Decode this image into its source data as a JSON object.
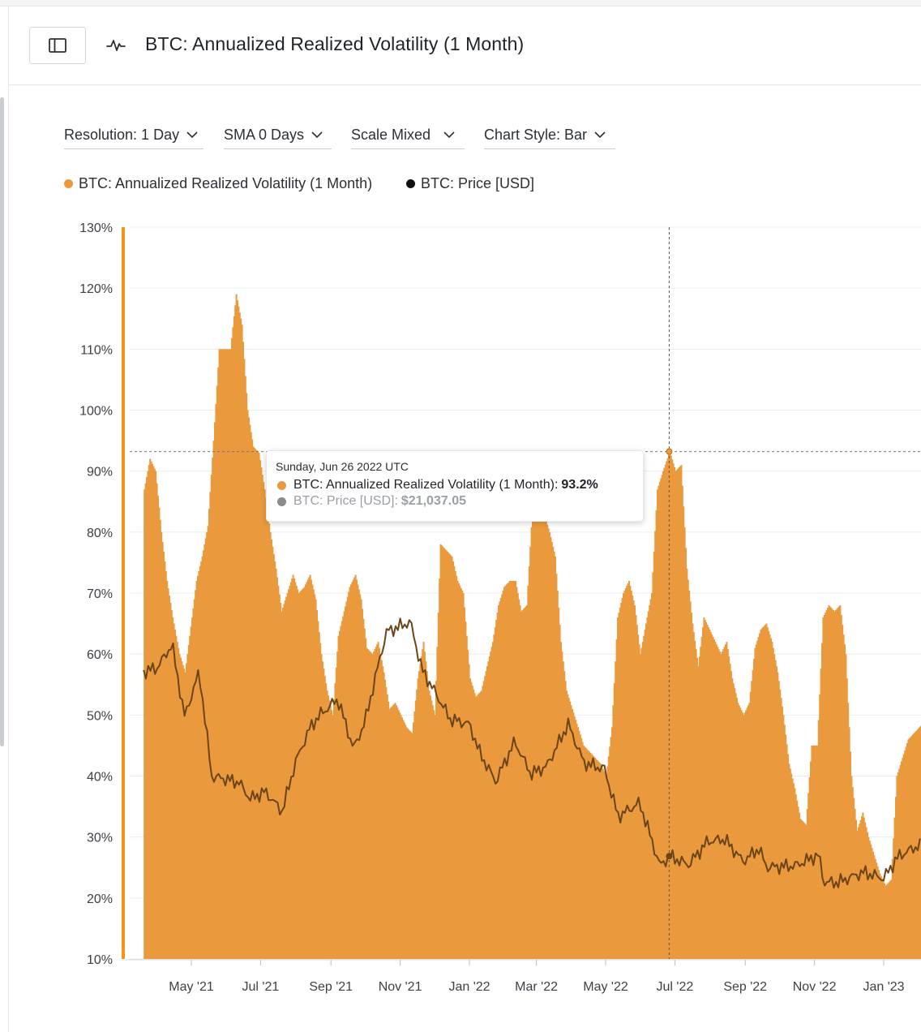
{
  "header": {
    "title": "BTC: Annualized Realized Volatility (1 Month)"
  },
  "controls": {
    "resolution": "Resolution: 1 Day",
    "sma": "SMA 0 Days",
    "scale": "Scale Mixed",
    "chart_style": "Chart Style: Bar"
  },
  "legend": {
    "volatility": "BTC: Annualized Realized Volatility (1 Month)",
    "price": "BTC: Price [USD]"
  },
  "colors": {
    "bar": "#ea9a3d",
    "price_line": "#6b4418",
    "price_line_unselected": "#9a9a9a",
    "accent": "#f7931a",
    "legend_price_dot": "#111111"
  },
  "tooltip": {
    "date": "Sunday, Jun 26 2022 UTC",
    "vol_label": "BTC: Annualized Realized Volatility (1 Month):",
    "vol_value": "93.2%",
    "price_label": "BTC: Price [USD]:",
    "price_value": "$21,037.05"
  },
  "chart_data": {
    "type": "bar",
    "title": "BTC: Annualized Realized Volatility (1 Month)",
    "ylim": [
      10,
      130
    ],
    "y_ticks": [
      "130%",
      "120%",
      "110%",
      "100%",
      "90%",
      "80%",
      "70%",
      "60%",
      "50%",
      "40%",
      "30%",
      "20%",
      "10%"
    ],
    "x_ticks": [
      "May '21",
      "Jul '21",
      "Sep '21",
      "Nov '21",
      "Jan '22",
      "Mar '22",
      "May '22",
      "Jul '22",
      "Sep '22",
      "Nov '22",
      "Jan '23"
    ],
    "x_tick_dates": [
      "2021-05-01",
      "2021-07-01",
      "2021-09-01",
      "2021-11-01",
      "2022-01-01",
      "2022-03-01",
      "2022-05-01",
      "2022-07-01",
      "2022-09-01",
      "2022-11-01",
      "2023-01-01"
    ],
    "x_range": [
      "2021-03-20",
      "2023-02-10"
    ],
    "series": [
      {
        "name": "BTC: Annualized Realized Volatility (1 Month)",
        "unit": "%",
        "points": [
          [
            "2021-03-20",
            87
          ],
          [
            "2021-03-25",
            92
          ],
          [
            "2021-03-30",
            90
          ],
          [
            "2021-04-04",
            80
          ],
          [
            "2021-04-09",
            72
          ],
          [
            "2021-04-14",
            66
          ],
          [
            "2021-04-20",
            60
          ],
          [
            "2021-04-25",
            57
          ],
          [
            "2021-05-01",
            66
          ],
          [
            "2021-05-05",
            72
          ],
          [
            "2021-05-10",
            76
          ],
          [
            "2021-05-15",
            81
          ],
          [
            "2021-05-20",
            95
          ],
          [
            "2021-05-25",
            110
          ],
          [
            "2021-05-30",
            110
          ],
          [
            "2021-06-04",
            110
          ],
          [
            "2021-06-09",
            119
          ],
          [
            "2021-06-14",
            114
          ],
          [
            "2021-06-19",
            100
          ],
          [
            "2021-06-24",
            94
          ],
          [
            "2021-06-29",
            93
          ],
          [
            "2021-07-04",
            87
          ],
          [
            "2021-07-09",
            80
          ],
          [
            "2021-07-14",
            74
          ],
          [
            "2021-07-19",
            67
          ],
          [
            "2021-07-24",
            70
          ],
          [
            "2021-07-29",
            73
          ],
          [
            "2021-08-03",
            70
          ],
          [
            "2021-08-08",
            71
          ],
          [
            "2021-08-13",
            73
          ],
          [
            "2021-08-18",
            69
          ],
          [
            "2021-08-23",
            60
          ],
          [
            "2021-08-28",
            54
          ],
          [
            "2021-09-02",
            50
          ],
          [
            "2021-09-07",
            63
          ],
          [
            "2021-09-12",
            67
          ],
          [
            "2021-09-17",
            71
          ],
          [
            "2021-09-22",
            73
          ],
          [
            "2021-09-27",
            69
          ],
          [
            "2021-10-02",
            61
          ],
          [
            "2021-10-07",
            60
          ],
          [
            "2021-10-12",
            62
          ],
          [
            "2021-10-17",
            57
          ],
          [
            "2021-10-22",
            51
          ],
          [
            "2021-10-27",
            52
          ],
          [
            "2021-11-01",
            50
          ],
          [
            "2021-11-06",
            48
          ],
          [
            "2021-11-11",
            47
          ],
          [
            "2021-11-16",
            56
          ],
          [
            "2021-11-21",
            62
          ],
          [
            "2021-11-26",
            54
          ],
          [
            "2021-12-01",
            50
          ],
          [
            "2021-12-06",
            78
          ],
          [
            "2021-12-11",
            77
          ],
          [
            "2021-12-16",
            76
          ],
          [
            "2021-12-21",
            72
          ],
          [
            "2021-12-26",
            70
          ],
          [
            "2022-01-01",
            56
          ],
          [
            "2022-01-06",
            53
          ],
          [
            "2022-01-11",
            54
          ],
          [
            "2022-01-16",
            58
          ],
          [
            "2022-01-21",
            62
          ],
          [
            "2022-01-26",
            68
          ],
          [
            "2022-01-31",
            71
          ],
          [
            "2022-02-05",
            72
          ],
          [
            "2022-02-10",
            72
          ],
          [
            "2022-02-15",
            67
          ],
          [
            "2022-02-20",
            68
          ],
          [
            "2022-02-25",
            84
          ],
          [
            "2022-03-02",
            86
          ],
          [
            "2022-03-07",
            83
          ],
          [
            "2022-03-12",
            80
          ],
          [
            "2022-03-17",
            76
          ],
          [
            "2022-03-22",
            62
          ],
          [
            "2022-03-27",
            54
          ],
          [
            "2022-04-01",
            51
          ],
          [
            "2022-04-06",
            48
          ],
          [
            "2022-04-11",
            45
          ],
          [
            "2022-04-16",
            44
          ],
          [
            "2022-04-21",
            43
          ],
          [
            "2022-04-26",
            42
          ],
          [
            "2022-05-01",
            40
          ],
          [
            "2022-05-06",
            48
          ],
          [
            "2022-05-11",
            66
          ],
          [
            "2022-05-16",
            70
          ],
          [
            "2022-05-21",
            72
          ],
          [
            "2022-05-26",
            68
          ],
          [
            "2022-05-31",
            60
          ],
          [
            "2022-06-05",
            65
          ],
          [
            "2022-06-10",
            70
          ],
          [
            "2022-06-15",
            87
          ],
          [
            "2022-06-20",
            90
          ],
          [
            "2022-06-26",
            93.2
          ],
          [
            "2022-07-01",
            90
          ],
          [
            "2022-07-06",
            91
          ],
          [
            "2022-07-11",
            74
          ],
          [
            "2022-07-16",
            65
          ],
          [
            "2022-07-21",
            58
          ],
          [
            "2022-07-26",
            66
          ],
          [
            "2022-07-31",
            64
          ],
          [
            "2022-08-05",
            62
          ],
          [
            "2022-08-10",
            60
          ],
          [
            "2022-08-15",
            62
          ],
          [
            "2022-08-20",
            56
          ],
          [
            "2022-08-25",
            52
          ],
          [
            "2022-08-30",
            50
          ],
          [
            "2022-09-04",
            52
          ],
          [
            "2022-09-09",
            61
          ],
          [
            "2022-09-14",
            64
          ],
          [
            "2022-09-19",
            65
          ],
          [
            "2022-09-24",
            62
          ],
          [
            "2022-09-29",
            57
          ],
          [
            "2022-10-04",
            50
          ],
          [
            "2022-10-09",
            42
          ],
          [
            "2022-10-14",
            38
          ],
          [
            "2022-10-19",
            33
          ],
          [
            "2022-10-24",
            32
          ],
          [
            "2022-10-29",
            45
          ],
          [
            "2022-11-03",
            45
          ],
          [
            "2022-11-08",
            66
          ],
          [
            "2022-11-13",
            68
          ],
          [
            "2022-11-18",
            67
          ],
          [
            "2022-11-23",
            68
          ],
          [
            "2022-11-28",
            60
          ],
          [
            "2022-12-03",
            40
          ],
          [
            "2022-12-08",
            31
          ],
          [
            "2022-12-13",
            34
          ],
          [
            "2022-12-18",
            30
          ],
          [
            "2022-12-23",
            27
          ],
          [
            "2022-12-28",
            24
          ],
          [
            "2023-01-02",
            22
          ],
          [
            "2023-01-07",
            23
          ],
          [
            "2023-01-12",
            40
          ],
          [
            "2023-01-17",
            43
          ],
          [
            "2023-01-22",
            46
          ],
          [
            "2023-01-27",
            47
          ],
          [
            "2023-02-01",
            48
          ],
          [
            "2023-02-06",
            49
          ],
          [
            "2023-02-10",
            49
          ]
        ]
      },
      {
        "name": "BTC: Price [USD]",
        "unit": "USD",
        "points": [
          [
            "2021-03-20",
            58000
          ],
          [
            "2021-04-01",
            58800
          ],
          [
            "2021-04-14",
            63500
          ],
          [
            "2021-04-25",
            49000
          ],
          [
            "2021-05-08",
            58000
          ],
          [
            "2021-05-19",
            37000
          ],
          [
            "2021-05-31",
            36500
          ],
          [
            "2021-06-12",
            35800
          ],
          [
            "2021-06-22",
            32500
          ],
          [
            "2021-07-05",
            34000
          ],
          [
            "2021-07-20",
            30000
          ],
          [
            "2021-08-01",
            40000
          ],
          [
            "2021-08-14",
            47000
          ],
          [
            "2021-08-23",
            49500
          ],
          [
            "2021-09-07",
            52500
          ],
          [
            "2021-09-21",
            42500
          ],
          [
            "2021-10-01",
            48000
          ],
          [
            "2021-10-15",
            61500
          ],
          [
            "2021-10-20",
            66000
          ],
          [
            "2021-11-10",
            68000
          ],
          [
            "2021-11-20",
            58500
          ],
          [
            "2021-12-04",
            53000
          ],
          [
            "2021-12-15",
            48500
          ],
          [
            "2022-01-01",
            47500
          ],
          [
            "2022-01-10",
            41800
          ],
          [
            "2022-01-24",
            36000
          ],
          [
            "2022-02-10",
            44000
          ],
          [
            "2022-02-24",
            37500
          ],
          [
            "2022-03-10",
            39000
          ],
          [
            "2022-03-29",
            47500
          ],
          [
            "2022-04-12",
            39700
          ],
          [
            "2022-04-30",
            38500
          ],
          [
            "2022-05-12",
            29000
          ],
          [
            "2022-05-31",
            31700
          ],
          [
            "2022-06-18",
            19000
          ],
          [
            "2022-06-26",
            21037.05
          ],
          [
            "2022-07-13",
            19300
          ],
          [
            "2022-07-30",
            24000
          ],
          [
            "2022-08-14",
            24400
          ],
          [
            "2022-08-30",
            20000
          ],
          [
            "2022-09-13",
            22500
          ],
          [
            "2022-09-20",
            18800
          ],
          [
            "2022-10-15",
            19100
          ],
          [
            "2022-11-05",
            21300
          ],
          [
            "2022-11-09",
            15800
          ],
          [
            "2022-11-21",
            15700
          ],
          [
            "2022-12-14",
            17800
          ],
          [
            "2023-01-01",
            16600
          ],
          [
            "2023-01-14",
            21000
          ],
          [
            "2023-02-01",
            23200
          ],
          [
            "2023-02-10",
            21800
          ]
        ]
      }
    ],
    "highlight": {
      "date": "2022-06-26",
      "volatility": 93.2,
      "price": 21037.05
    },
    "grid": true,
    "legend_position": "top-left"
  }
}
